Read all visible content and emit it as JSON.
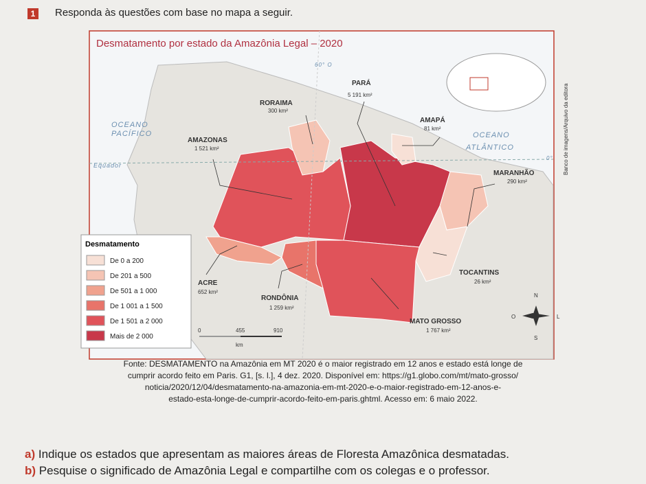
{
  "header": {
    "number": "1",
    "instruction": "Responda às questões com base no mapa a seguir."
  },
  "map": {
    "title": "Desmatamento por estado da Amazônia Legal – 2020",
    "equator": "Equador",
    "meridian": "60° O",
    "zero": "0°",
    "ocean_pacific": [
      "OCEANO",
      "PACÍFICO"
    ],
    "ocean_atlantic": [
      "OCEANO",
      "ATLÂNTICO"
    ],
    "states": [
      {
        "name": "RORAIMA",
        "value": "300 km²"
      },
      {
        "name": "PARÁ",
        "value": "5 191 km²"
      },
      {
        "name": "AMAZONAS",
        "value": "1 521 km²"
      },
      {
        "name": "AMAPÁ",
        "value": "81 km²"
      },
      {
        "name": "MARANHÃO",
        "value": "290 km²"
      },
      {
        "name": "TOCANTINS",
        "value": "26 km²"
      },
      {
        "name": "ACRE",
        "value": "652 km²"
      },
      {
        "name": "RONDÔNIA",
        "value": "1 259 km²"
      },
      {
        "name": "MATO GROSSO",
        "value": "1 767 km²"
      }
    ],
    "legend": {
      "title": "Desmatamento",
      "items": [
        {
          "label": "De 0 a 200",
          "color": "#f7e0d6"
        },
        {
          "label": "De 201 a 500",
          "color": "#f5c4b4"
        },
        {
          "label": "De 501 a 1 000",
          "color": "#f0a28e"
        },
        {
          "label": "De 1 001 a 1 500",
          "color": "#e8746a"
        },
        {
          "label": "De 1 501 a 2 000",
          "color": "#e0535a"
        },
        {
          "label": "Mais de 2 000",
          "color": "#c8384a"
        }
      ]
    },
    "scale": [
      "0",
      "455",
      "910",
      "km"
    ],
    "compass": [
      "N",
      "S",
      "L",
      "O"
    ],
    "credit": "Banco de imagens/Arquivo da editora"
  },
  "source": [
    "Fonte: DESMATAMENTO na Amazônia em MT 2020 é o maior registrado em 12 anos e estado está longe de",
    "cumprir acordo feito em Paris. G1, [s. l.], 4 dez. 2020. Disponível em: https://g1.globo.com/mt/mato-grosso/",
    "noticia/2020/12/04/desmatamento-na-amazonia-em-mt-2020-e-o-maior-registrado-em-12-anos-e-",
    "estado-esta-longe-de-cumprir-acordo-feito-em-paris.ghtml. Acesso em: 6 maio 2022."
  ],
  "questions": [
    {
      "letter": "a)",
      "text": "Indique os estados que apresentam as maiores áreas de Floresta Amazônica desmatadas."
    },
    {
      "letter": "b)",
      "text": "Pesquise o significado de Amazônia Legal e compartilhe com os colegas e o professor."
    }
  ]
}
